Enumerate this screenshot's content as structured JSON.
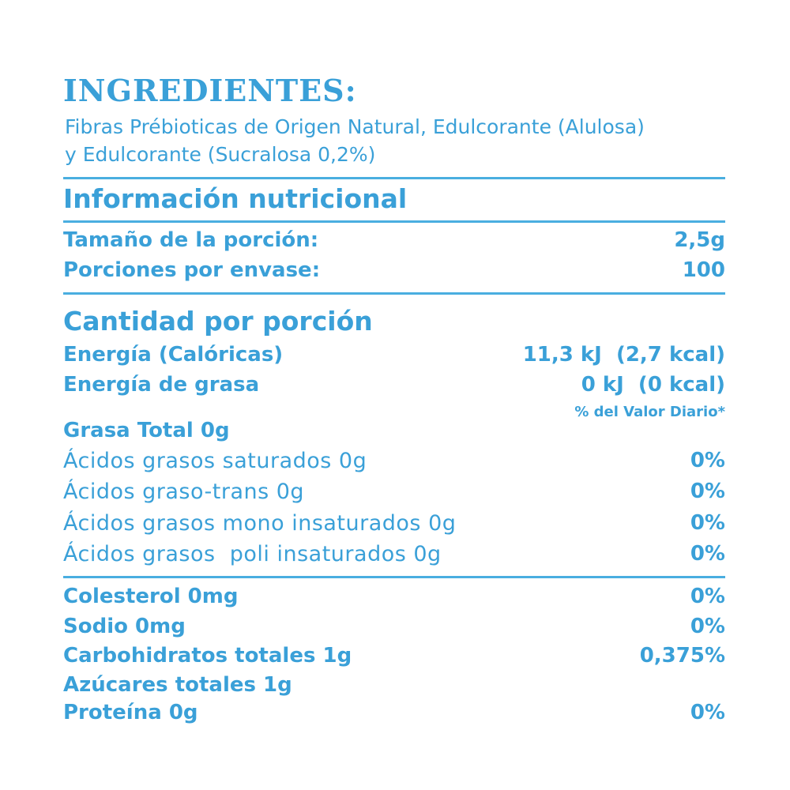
{
  "ingredients": {
    "title": "INGREDIENTES:",
    "line1": "Fibras Prébioticas de Origen Natural, Edulcorante (Alulosa)",
    "line2": "y Edulcorante (Sucralosa 0,2%)"
  },
  "nutrition": {
    "title": "Información nutricional",
    "serving_size_label": "Tamaño de la porción:",
    "serving_size_value": "2,5g",
    "servings_label": "Porciones por envase:",
    "servings_value": "100"
  },
  "per_serving": {
    "title": "Cantidad por porción",
    "energy_label": "Energía (Calóricas)",
    "energy_value": "11,3 kJ  (2,7 kcal)",
    "fat_energy_label": "Energía de grasa",
    "fat_energy_value": "0 kJ  (0 kcal)",
    "daily_value_header": "% del Valor Diario*"
  },
  "fats": {
    "total_fat": "Grasa Total 0g",
    "items": [
      {
        "label": "Ácidos grasos saturados 0g",
        "pct": "0%"
      },
      {
        "label": "Ácidos graso-trans 0g",
        "pct": "0%"
      },
      {
        "label": "Ácidos grasos mono insaturados 0g",
        "pct": "0%"
      },
      {
        "label": "Ácidos grasos  poli insaturados 0g",
        "pct": "0%"
      }
    ]
  },
  "others": [
    {
      "label": "Colesterol 0mg",
      "pct": "0%"
    },
    {
      "label": "Sodio 0mg",
      "pct": "0%"
    },
    {
      "label": "Carbohidratos totales 1g",
      "pct": "0,375%"
    },
    {
      "label": "Azúcares totales 1g",
      "pct": ""
    },
    {
      "label": "Proteína 0g",
      "pct": "0%"
    }
  ],
  "colors": {
    "text": "#3aa0d8",
    "rule": "#4aaee0"
  }
}
